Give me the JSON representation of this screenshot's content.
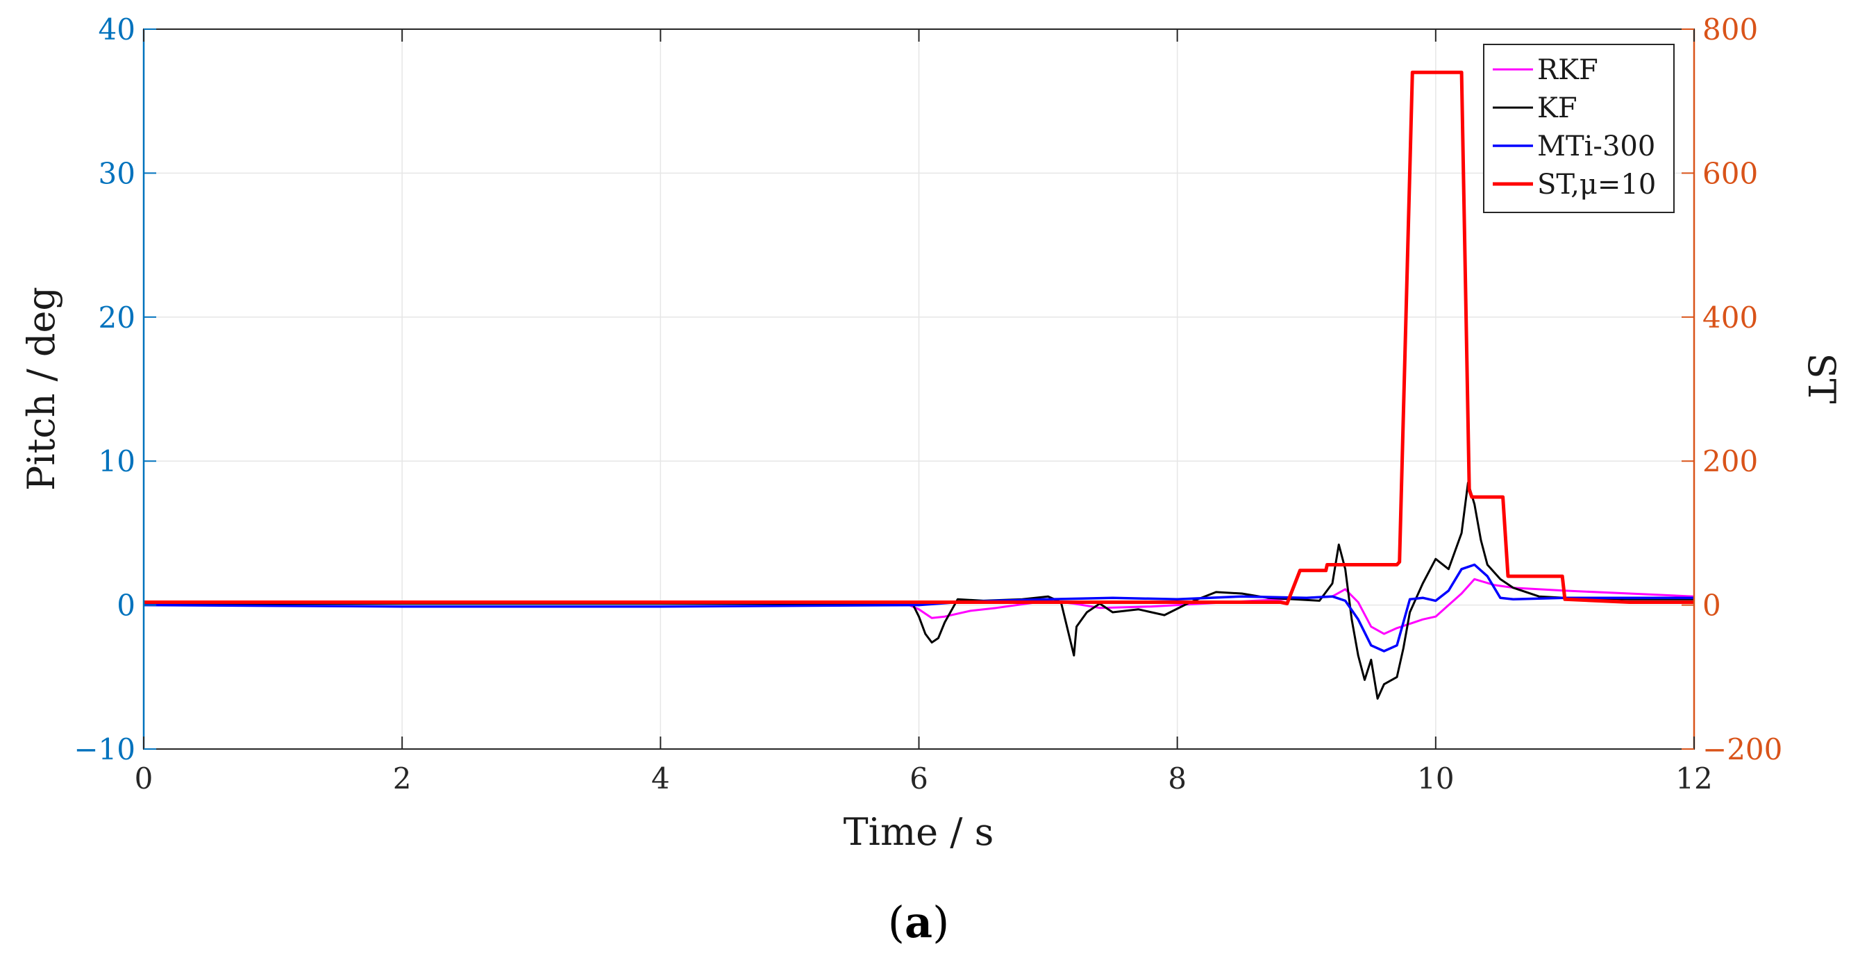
{
  "chart_data": {
    "type": "line",
    "xlabel": "Time / s",
    "ylabel_left": "Pitch / deg",
    "ylabel_right": "ST",
    "xlim": [
      0,
      12
    ],
    "ylim_left": [
      -10,
      40
    ],
    "ylim_right": [
      -200,
      800
    ],
    "xticks": [
      "0",
      "2",
      "4",
      "6",
      "8",
      "10",
      "12"
    ],
    "yticks_left": [
      "−10",
      "0",
      "10",
      "20",
      "30",
      "40"
    ],
    "yticks_right": [
      "−200",
      "0",
      "200",
      "400",
      "600",
      "800"
    ],
    "grid": true,
    "legend_position": "top-right",
    "caption_open": "(",
    "caption_letter": "a",
    "caption_close": ")",
    "colors": {
      "left_axis": "#0072BD",
      "right_axis": "#D95319",
      "RKF": "#FF00FF",
      "KF": "#000000",
      "MTi-300": "#0000FF",
      "ST": "#FF0000"
    },
    "series": [
      {
        "name": "RKF",
        "axis": "left",
        "x": [
          0,
          5.9,
          6.0,
          6.1,
          6.2,
          6.4,
          6.6,
          7.0,
          7.2,
          7.4,
          7.8,
          8.2,
          8.6,
          9.0,
          9.2,
          9.3,
          9.4,
          9.5,
          9.6,
          9.7,
          9.8,
          9.9,
          10.0,
          10.1,
          10.2,
          10.3,
          10.45,
          10.6,
          11.0,
          11.5,
          12.0
        ],
        "y": [
          0.1,
          0.1,
          -0.3,
          -0.9,
          -0.8,
          -0.4,
          -0.2,
          0.3,
          0.1,
          -0.2,
          -0.1,
          0.1,
          0.3,
          0.5,
          0.6,
          1.1,
          0.2,
          -1.5,
          -2.0,
          -1.6,
          -1.3,
          -1.0,
          -0.8,
          0.0,
          0.8,
          1.8,
          1.4,
          1.2,
          1.0,
          0.8,
          0.6
        ]
      },
      {
        "name": "KF",
        "axis": "left",
        "x": [
          0,
          5.95,
          6.0,
          6.05,
          6.1,
          6.15,
          6.2,
          6.3,
          6.5,
          6.8,
          7.0,
          7.1,
          7.2,
          7.22,
          7.3,
          7.4,
          7.5,
          7.7,
          7.9,
          8.1,
          8.3,
          8.5,
          8.7,
          8.9,
          9.1,
          9.2,
          9.25,
          9.3,
          9.35,
          9.4,
          9.45,
          9.5,
          9.55,
          9.6,
          9.7,
          9.75,
          9.8,
          9.9,
          10.0,
          10.1,
          10.2,
          10.25,
          10.3,
          10.35,
          10.4,
          10.5,
          10.6,
          10.8,
          11.0,
          11.5,
          12.0
        ],
        "y": [
          0.1,
          0.1,
          -0.8,
          -2.0,
          -2.6,
          -2.3,
          -1.2,
          0.4,
          0.3,
          0.4,
          0.6,
          0.2,
          -3.5,
          -1.5,
          -0.5,
          0.1,
          -0.5,
          -0.3,
          -0.7,
          0.2,
          0.9,
          0.8,
          0.5,
          0.4,
          0.3,
          1.5,
          4.2,
          2.5,
          -1.0,
          -3.5,
          -5.2,
          -3.8,
          -6.5,
          -5.5,
          -5.0,
          -3.0,
          -0.5,
          1.5,
          3.2,
          2.5,
          5.0,
          8.5,
          7.0,
          4.5,
          2.8,
          1.8,
          1.2,
          0.6,
          0.5,
          0.4,
          0.4
        ]
      },
      {
        "name": "MTi-300",
        "axis": "left",
        "x": [
          0,
          2.0,
          4.0,
          6.0,
          6.3,
          6.6,
          7.0,
          7.5,
          8.0,
          8.5,
          9.0,
          9.2,
          9.3,
          9.4,
          9.5,
          9.6,
          9.7,
          9.8,
          9.9,
          10.0,
          10.1,
          10.2,
          10.3,
          10.4,
          10.5,
          10.6,
          11.0,
          11.5,
          12.0
        ],
        "y": [
          0.0,
          -0.1,
          -0.1,
          0.0,
          0.2,
          0.3,
          0.4,
          0.5,
          0.4,
          0.6,
          0.5,
          0.6,
          0.3,
          -1.0,
          -2.8,
          -3.2,
          -2.8,
          0.4,
          0.5,
          0.3,
          1.0,
          2.5,
          2.8,
          2.0,
          0.5,
          0.4,
          0.5,
          0.5,
          0.5
        ]
      },
      {
        "name": "ST,μ=10",
        "axis": "right",
        "x": [
          0,
          8.8,
          8.85,
          8.95,
          9.15,
          9.16,
          9.7,
          9.72,
          9.82,
          9.84,
          10.18,
          10.2,
          10.26,
          10.28,
          10.5,
          10.52,
          10.56,
          10.58,
          10.98,
          11.0,
          11.5,
          12.0
        ],
        "y": [
          4,
          4,
          2,
          48,
          48,
          56,
          56,
          60,
          740,
          740,
          740,
          740,
          160,
          150,
          150,
          150,
          40,
          40,
          40,
          8,
          4,
          4
        ]
      }
    ]
  }
}
